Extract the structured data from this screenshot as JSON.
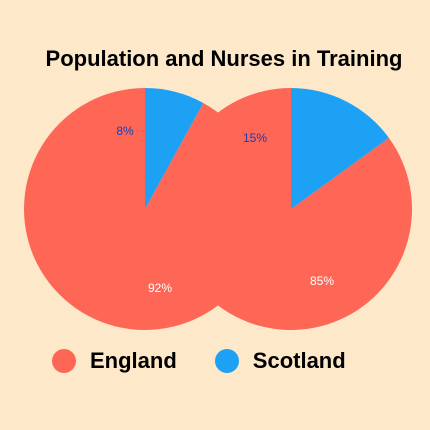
{
  "chart_data": {
    "type": "pie",
    "title": "Population and Nurses in Training",
    "categories": [
      "England",
      "Scotland"
    ],
    "colors": {
      "England": "#fe6656",
      "Scotland": "#1da1f5"
    },
    "pies": [
      {
        "values": [
          92,
          8
        ],
        "labels": [
          "92%",
          "8%"
        ]
      },
      {
        "values": [
          85,
          15
        ],
        "labels": [
          "85%",
          "15%"
        ]
      }
    ],
    "legend": {
      "position": "bottom",
      "items": [
        "England",
        "Scotland"
      ]
    }
  }
}
